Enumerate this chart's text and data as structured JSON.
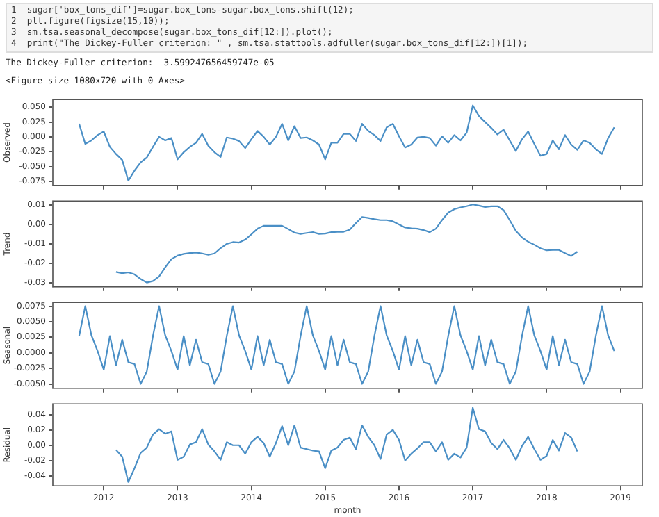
{
  "chart_data": [
    {
      "type": "other",
      "annotations": [
        "1  sugar['box_tons_dif']=sugar.box_tons-sugar.box_tons.shift(12);",
        "2  plt.figure(figsize(15,10));",
        "3  sm.tsa.seasonal_decompose(sugar.box_tons_dif[12:]).plot();",
        "4  print(\"The Dickey-Fuller criterion: \" , sm.tsa.stattools.adfuller(sugar.box_tons_dif[12:])[1]);",
        "The Dickey-Fuller criterion:  3.599247656459747e-05",
        "<Figure size 1080x720 with 0 Axes>"
      ]
    },
    {
      "type": "line",
      "ylabel": "Observed",
      "color": "#4a8fc6",
      "tick_labels": "y",
      "grid": false,
      "x": [
        "2011-09",
        "2011-10",
        "2011-11",
        "2011-12",
        "2012-01",
        "2012-02",
        "2012-03",
        "2012-04",
        "2012-05",
        "2012-06",
        "2012-07",
        "2012-08",
        "2012-09",
        "2012-10",
        "2012-11",
        "2012-12",
        "2013-01",
        "2013-02",
        "2013-03",
        "2013-04",
        "2013-05",
        "2013-06",
        "2013-07",
        "2013-08",
        "2013-09",
        "2013-10",
        "2013-11",
        "2013-12",
        "2014-01",
        "2014-02",
        "2014-03",
        "2014-04",
        "2014-05",
        "2014-06",
        "2014-07",
        "2014-08",
        "2014-09",
        "2014-10",
        "2014-11",
        "2014-12",
        "2015-01",
        "2015-02",
        "2015-03",
        "2015-04",
        "2015-05",
        "2015-06",
        "2015-07",
        "2015-08",
        "2015-09",
        "2015-10",
        "2015-11",
        "2015-12",
        "2016-01",
        "2016-02",
        "2016-03",
        "2016-04",
        "2016-05",
        "2016-06",
        "2016-07",
        "2016-08",
        "2016-09",
        "2016-10",
        "2016-11",
        "2016-12",
        "2017-01",
        "2017-02",
        "2017-03",
        "2017-04",
        "2017-05",
        "2017-06",
        "2017-07",
        "2017-08",
        "2017-09",
        "2017-10",
        "2017-11",
        "2017-12",
        "2018-01",
        "2018-02",
        "2018-03",
        "2018-04",
        "2018-05",
        "2018-06",
        "2018-07",
        "2018-08",
        "2018-09",
        "2018-10",
        "2018-11",
        "2018-12"
      ],
      "values": [
        0.022,
        -0.012,
        -0.006,
        0.003,
        0.009,
        -0.017,
        -0.029,
        -0.039,
        -0.074,
        -0.057,
        -0.043,
        -0.035,
        -0.017,
        0,
        -0.006,
        -0.002,
        -0.038,
        -0.026,
        -0.017,
        -0.01,
        0.005,
        -0.015,
        -0.026,
        -0.034,
        -0.001,
        -0.003,
        -0.007,
        -0.019,
        -0.004,
        0.01,
        0,
        -0.013,
        0,
        0.022,
        -0.006,
        0.018,
        -0.002,
        -0.001,
        -0.006,
        -0.013,
        -0.038,
        -0.01,
        -0.01,
        0.005,
        0.005,
        -0.007,
        0.022,
        0.01,
        0.003,
        -0.007,
        0.016,
        0.022,
        0.001,
        -0.018,
        -0.013,
        -0.001,
        0,
        -0.002,
        -0.015,
        0.001,
        -0.01,
        0.003,
        -0.006,
        0.007,
        0.053,
        0.035,
        0.025,
        0.015,
        0.004,
        0.012,
        -0.006,
        -0.024,
        -0.004,
        0.009,
        -0.012,
        -0.032,
        -0.029,
        -0.006,
        -0.021,
        0.003,
        -0.013,
        -0.022,
        -0.006,
        -0.01,
        -0.021,
        -0.029,
        -0.002,
        0.016
      ],
      "xlim": [
        "2011-04-23",
        "2019-04-18"
      ],
      "xticks": [
        "2012",
        "2013",
        "2014",
        "2015",
        "2016",
        "2017",
        "2018",
        "2019"
      ],
      "ylim": [
        -0.082,
        0.063
      ],
      "yticks": [
        {
          "value": -0.075,
          "label": "-0.075"
        },
        {
          "value": -0.05,
          "label": "-0.050"
        },
        {
          "value": -0.025,
          "label": "-0.025"
        },
        {
          "value": 0,
          "label": "0.000"
        },
        {
          "value": 0.025,
          "label": "0.025"
        },
        {
          "value": 0.05,
          "label": "0.050"
        }
      ]
    },
    {
      "type": "line",
      "ylabel": "Trend",
      "color": "#4a8fc6",
      "tick_labels": "y",
      "grid": false,
      "x": [
        "2012-03",
        "2012-04",
        "2012-05",
        "2012-06",
        "2012-07",
        "2012-08",
        "2012-09",
        "2012-10",
        "2012-11",
        "2012-12",
        "2013-01",
        "2013-02",
        "2013-03",
        "2013-04",
        "2013-05",
        "2013-06",
        "2013-07",
        "2013-08",
        "2013-09",
        "2013-10",
        "2013-11",
        "2013-12",
        "2014-01",
        "2014-02",
        "2014-03",
        "2014-04",
        "2014-05",
        "2014-06",
        "2014-07",
        "2014-08",
        "2014-09",
        "2014-10",
        "2014-11",
        "2014-12",
        "2015-01",
        "2015-02",
        "2015-03",
        "2015-04",
        "2015-05",
        "2015-06",
        "2015-07",
        "2015-08",
        "2015-09",
        "2015-10",
        "2015-11",
        "2015-12",
        "2016-01",
        "2016-02",
        "2016-03",
        "2016-04",
        "2016-05",
        "2016-06",
        "2016-07",
        "2016-08",
        "2016-09",
        "2016-10",
        "2016-11",
        "2016-12",
        "2017-01",
        "2017-02",
        "2017-03",
        "2017-04",
        "2017-05",
        "2017-06",
        "2017-07",
        "2017-08",
        "2017-09",
        "2017-10",
        "2017-11",
        "2017-12",
        "2018-01",
        "2018-02",
        "2018-03",
        "2018-04",
        "2018-05",
        "2018-06"
      ],
      "values": [
        -0.0244,
        -0.025,
        -0.0246,
        -0.0256,
        -0.028,
        -0.0298,
        -0.029,
        -0.0267,
        -0.022,
        -0.0178,
        -0.016,
        -0.0151,
        -0.0147,
        -0.0144,
        -0.0149,
        -0.0156,
        -0.0149,
        -0.0122,
        -0.01,
        -0.0091,
        -0.0093,
        -0.0078,
        -0.0051,
        -0.0022,
        -0.0007,
        -0.0007,
        -0.0007,
        -0.0007,
        -0.0024,
        -0.0042,
        -0.0049,
        -0.0044,
        -0.004,
        -0.0049,
        -0.0047,
        -0.004,
        -0.0038,
        -0.0038,
        -0.0027,
        0.0007,
        0.0038,
        0.0033,
        0.0027,
        0.0022,
        0.0022,
        0.0016,
        0,
        -0.0016,
        -0.002,
        -0.0022,
        -0.0029,
        -0.004,
        -0.0022,
        0.0022,
        0.006,
        0.0078,
        0.0087,
        0.0093,
        0.0102,
        0.0096,
        0.0089,
        0.0093,
        0.0093,
        0.0073,
        0.0022,
        -0.0033,
        -0.0067,
        -0.0089,
        -0.0104,
        -0.0122,
        -0.0133,
        -0.0131,
        -0.0131,
        -0.0147,
        -0.0162,
        -0.014
      ],
      "xlim": [
        "2011-04-23",
        "2019-04-18"
      ],
      "xticks": [
        "2012",
        "2013",
        "2014",
        "2015",
        "2016",
        "2017",
        "2018",
        "2019"
      ],
      "ylim": [
        -0.032,
        0.012
      ],
      "yticks": [
        {
          "value": -0.03,
          "label": "-0.03"
        },
        {
          "value": -0.02,
          "label": "-0.02"
        },
        {
          "value": -0.01,
          "label": "-0.01"
        },
        {
          "value": 0,
          "label": "0.00"
        },
        {
          "value": 0.01,
          "label": "0.01"
        }
      ]
    },
    {
      "type": "line",
      "ylabel": "Seasonal",
      "color": "#4a8fc6",
      "tick_labels": "y",
      "grid": false,
      "x": [
        "2011-09",
        "2011-10",
        "2011-11",
        "2011-12",
        "2012-01",
        "2012-02",
        "2012-03",
        "2012-04",
        "2012-05",
        "2012-06",
        "2012-07",
        "2012-08",
        "2012-09",
        "2012-10",
        "2012-11",
        "2012-12",
        "2013-01",
        "2013-02",
        "2013-03",
        "2013-04",
        "2013-05",
        "2013-06",
        "2013-07",
        "2013-08",
        "2013-09",
        "2013-10",
        "2013-11",
        "2013-12",
        "2014-01",
        "2014-02",
        "2014-03",
        "2014-04",
        "2014-05",
        "2014-06",
        "2014-07",
        "2014-08",
        "2014-09",
        "2014-10",
        "2014-11",
        "2014-12",
        "2015-01",
        "2015-02",
        "2015-03",
        "2015-04",
        "2015-05",
        "2015-06",
        "2015-07",
        "2015-08",
        "2015-09",
        "2015-10",
        "2015-11",
        "2015-12",
        "2016-01",
        "2016-02",
        "2016-03",
        "2016-04",
        "2016-05",
        "2016-06",
        "2016-07",
        "2016-08",
        "2016-09",
        "2016-10",
        "2016-11",
        "2016-12",
        "2017-01",
        "2017-02",
        "2017-03",
        "2017-04",
        "2017-05",
        "2017-06",
        "2017-07",
        "2017-08",
        "2017-09",
        "2017-10",
        "2017-11",
        "2017-12",
        "2018-01",
        "2018-02",
        "2018-03",
        "2018-04",
        "2018-05",
        "2018-06",
        "2018-07",
        "2018-08",
        "2018-09",
        "2018-10",
        "2018-11",
        "2018-12"
      ],
      "values": [
        0.0027,
        0.0075,
        0.0028,
        0.0003,
        -0.0027,
        0.0027,
        -0.002,
        0.0021,
        -0.0015,
        -0.0018,
        -0.005,
        -0.003,
        0.0027,
        0.0075,
        0.0028,
        0.0003,
        -0.0027,
        0.0027,
        -0.002,
        0.0021,
        -0.0015,
        -0.0018,
        -0.005,
        -0.003,
        0.0027,
        0.0075,
        0.0028,
        0.0003,
        -0.0027,
        0.0027,
        -0.002,
        0.0021,
        -0.0015,
        -0.0018,
        -0.005,
        -0.003,
        0.0027,
        0.0075,
        0.0028,
        0.0003,
        -0.0027,
        0.0027,
        -0.002,
        0.0021,
        -0.0015,
        -0.0018,
        -0.005,
        -0.003,
        0.0027,
        0.0075,
        0.0028,
        0.0003,
        -0.0027,
        0.0027,
        -0.002,
        0.0021,
        -0.0015,
        -0.0018,
        -0.005,
        -0.003,
        0.0027,
        0.0075,
        0.0028,
        0.0003,
        -0.0027,
        0.0027,
        -0.002,
        0.0021,
        -0.0015,
        -0.0018,
        -0.005,
        -0.003,
        0.0027,
        0.0075,
        0.0028,
        0.0003,
        -0.0027,
        0.0027,
        -0.002,
        0.0021,
        -0.0015,
        -0.0018,
        -0.005,
        -0.003,
        0.0027,
        0.0075,
        0.0028,
        0.0003
      ],
      "xlim": [
        "2011-04-23",
        "2019-04-18"
      ],
      "xticks": [
        "2012",
        "2013",
        "2014",
        "2015",
        "2016",
        "2017",
        "2018",
        "2019"
      ],
      "ylim": [
        -0.0057,
        0.0081
      ],
      "yticks": [
        {
          "value": -0.005,
          "label": "-0.0050"
        },
        {
          "value": -0.0025,
          "label": "-0.0025"
        },
        {
          "value": 0,
          "label": "0.0000"
        },
        {
          "value": 0.0025,
          "label": "0.0025"
        },
        {
          "value": 0.005,
          "label": "0.0050"
        },
        {
          "value": 0.0075,
          "label": "0.0075"
        }
      ]
    },
    {
      "type": "line",
      "ylabel": "Residual",
      "xlabel": "month",
      "color": "#4a8fc6",
      "grid": false,
      "x": [
        "2012-03",
        "2012-04",
        "2012-05",
        "2012-06",
        "2012-07",
        "2012-08",
        "2012-09",
        "2012-10",
        "2012-11",
        "2012-12",
        "2013-01",
        "2013-02",
        "2013-03",
        "2013-04",
        "2013-05",
        "2013-06",
        "2013-07",
        "2013-08",
        "2013-09",
        "2013-10",
        "2013-11",
        "2013-12",
        "2014-01",
        "2014-02",
        "2014-03",
        "2014-04",
        "2014-05",
        "2014-06",
        "2014-07",
        "2014-08",
        "2014-09",
        "2014-10",
        "2014-11",
        "2014-12",
        "2015-01",
        "2015-02",
        "2015-03",
        "2015-04",
        "2015-05",
        "2015-06",
        "2015-07",
        "2015-08",
        "2015-09",
        "2015-10",
        "2015-11",
        "2015-12",
        "2016-01",
        "2016-02",
        "2016-03",
        "2016-04",
        "2016-05",
        "2016-06",
        "2016-07",
        "2016-08",
        "2016-09",
        "2016-10",
        "2016-11",
        "2016-12",
        "2017-01",
        "2017-02",
        "2017-03",
        "2017-04",
        "2017-05",
        "2017-06",
        "2017-07",
        "2017-08",
        "2017-09",
        "2017-10",
        "2017-11",
        "2017-12",
        "2018-01",
        "2018-02",
        "2018-03",
        "2018-04",
        "2018-05",
        "2018-06"
      ],
      "values": [
        -0.006,
        -0.015,
        -0.048,
        -0.03,
        -0.01,
        -0.003,
        0.014,
        0.021,
        0.015,
        0.018,
        -0.019,
        -0.015,
        0.001,
        0.004,
        0.021,
        0.001,
        -0.008,
        -0.019,
        0.004,
        0,
        0,
        -0.011,
        0.004,
        0.011,
        0.003,
        -0.015,
        0.003,
        0.025,
        0,
        0.026,
        -0.003,
        -0.005,
        -0.007,
        -0.008,
        -0.03,
        -0.007,
        -0.003,
        0.007,
        0.01,
        -0.005,
        0.026,
        0.011,
        0,
        -0.018,
        0.014,
        0.02,
        0.007,
        -0.02,
        -0.011,
        -0.004,
        0.004,
        0.004,
        -0.008,
        0.004,
        -0.019,
        -0.011,
        -0.016,
        -0.003,
        0.049,
        0.021,
        0.018,
        0.003,
        -0.005,
        0.007,
        -0.004,
        -0.019,
        -0.001,
        0.011,
        -0.005,
        -0.019,
        -0.014,
        0.007,
        -0.007,
        0.016,
        0.01,
        -0.008
      ],
      "xlim": [
        "2011-04-23",
        "2019-04-18"
      ],
      "xticks": [
        "2012",
        "2013",
        "2014",
        "2015",
        "2016",
        "2017",
        "2018",
        "2019"
      ],
      "ylim": [
        -0.053,
        0.054
      ],
      "yticks": [
        {
          "value": -0.04,
          "label": "-0.04"
        },
        {
          "value": -0.02,
          "label": "-0.02"
        },
        {
          "value": 0,
          "label": "0.00"
        },
        {
          "value": 0.02,
          "label": "0.02"
        },
        {
          "value": 0.04,
          "label": "0.04"
        }
      ]
    }
  ]
}
